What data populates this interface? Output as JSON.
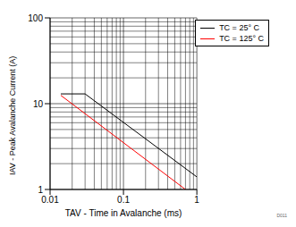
{
  "chart_data": {
    "type": "line",
    "log": true,
    "grid": true,
    "legend": "top-right",
    "x_label": "TAV - Time in Avalanche (ms)",
    "y_label": "IAV - Peak Avalanche Current (A)",
    "annotation": "D011",
    "xlim": [
      0.01,
      1
    ],
    "ylim": [
      1,
      100
    ],
    "xticks": [
      0.01,
      0.1,
      1
    ],
    "yticks": [
      1,
      10,
      100
    ],
    "series": [
      {
        "name": "TC = 25° C",
        "color": "#000000",
        "x": [
          0.014,
          0.03,
          1
        ],
        "values": [
          13,
          13,
          1.4
        ]
      },
      {
        "name": "TC = 125° C",
        "color": "#ff0000",
        "x": [
          0.014,
          0.7
        ],
        "values": [
          12.5,
          1
        ]
      }
    ]
  }
}
